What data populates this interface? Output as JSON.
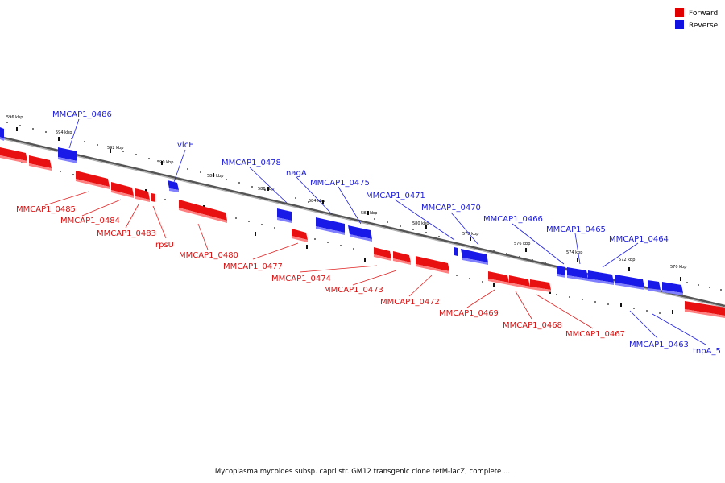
{
  "legend": {
    "forward": {
      "label": "Forward",
      "color": "#e00000"
    },
    "reverse": {
      "label": "Reverse",
      "color": "#1010e0"
    }
  },
  "caption": "Mycoplasma mycoides subsp. capri str. GM12 transgenic clone tetM-lacZ, complete ...",
  "kbp_ticks": [
    "596 kbp",
    "594 kbp",
    "592 kbp",
    "590 kbp",
    "588 kbp",
    "586 kbp",
    "584 kbp",
    "582 kbp",
    "580 kbp",
    "578 kbp",
    "576 kbp",
    "574 kbp",
    "572 kbp",
    "570 kbp"
  ],
  "genes_reverse": [
    "MMCAP1_0486",
    "vlcE",
    "MMCAP1_0478",
    "nagA",
    "MMCAP1_0475",
    "MMCAP1_0471",
    "MMCAP1_0470",
    "MMCAP1_0466",
    "MMCAP1_0465",
    "MMCAP1_0464",
    "MMCAP1_0463",
    "tnpA_5"
  ],
  "genes_forward": [
    "MMCAP1_0485",
    "MMCAP1_0484",
    "MMCAP1_0483",
    "rpsU",
    "MMCAP1_0480",
    "MMCAP1_0477",
    "MMCAP1_0474",
    "MMCAP1_0473",
    "MMCAP1_0472",
    "MMCAP1_0469",
    "MMCAP1_0468",
    "MMCAP1_0467"
  ]
}
